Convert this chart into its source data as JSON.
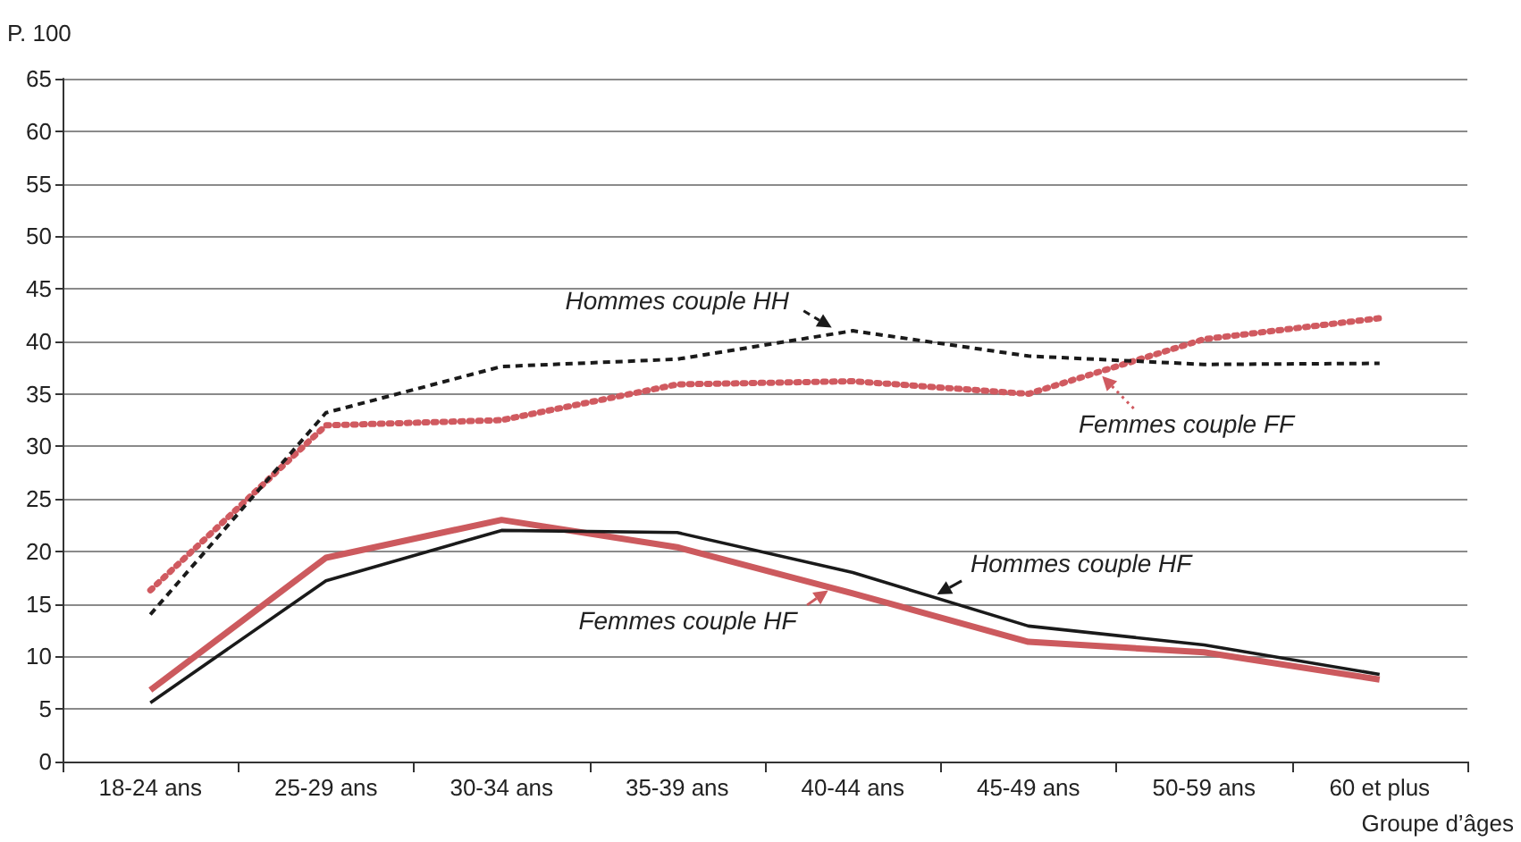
{
  "chart_data": {
    "type": "line",
    "ylabel": "P. 100",
    "xlabel": "Groupe d’âges",
    "categories": [
      "18-24 ans",
      "25-29 ans",
      "30-34 ans",
      "35-39 ans",
      "40-44 ans",
      "45-49 ans",
      "50-59 ans",
      "60 et plus"
    ],
    "series": [
      {
        "name": "Hommes couple HH",
        "color": "#1a1a1a",
        "line_style": "dashed",
        "values": [
          14,
          33.2,
          37.6,
          38.3,
          41,
          38.6,
          37.8,
          37.9
        ]
      },
      {
        "name": "Femmes couple FF",
        "color": "#d05a60",
        "line_style": "dotted",
        "values": [
          16.3,
          32,
          32.5,
          35.9,
          36.2,
          35,
          40.2,
          42.2
        ]
      },
      {
        "name": "Hommes couple HF",
        "color": "#1a1a1a",
        "line_style": "solid",
        "values": [
          5.6,
          17.2,
          22,
          21.8,
          18,
          12.9,
          11.1,
          8.3
        ]
      },
      {
        "name": "Femmes couple HF",
        "color": "#cc5a5e",
        "line_style": "solid",
        "values": [
          6.8,
          19.4,
          23,
          20.4,
          16,
          11.4,
          10.4,
          7.8
        ]
      }
    ],
    "ylim": [
      0,
      65
    ],
    "yticks": [
      0,
      5,
      10,
      15,
      20,
      25,
      30,
      35,
      40,
      45,
      50,
      55,
      60,
      65
    ],
    "grid": "y",
    "legend": "right",
    "marker": "none"
  }
}
